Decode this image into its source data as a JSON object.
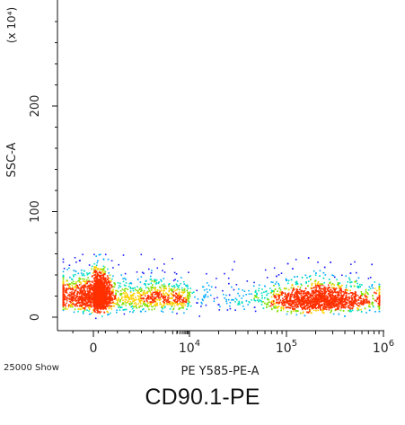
{
  "chart_data": {
    "type": "scatter",
    "title": "",
    "xlabel": "PE Y585-PE-A",
    "ylabel": "SSC-A",
    "y_multiplier": "(x 10⁴)",
    "x_scale": "biexponential",
    "y_scale": "linear",
    "ylim": [
      -5,
      290
    ],
    "xlim": [
      -0.35,
      6
    ],
    "x_ticks": [
      {
        "value": 0,
        "label": "0"
      },
      {
        "value": 4,
        "label": "10",
        "exp": "4"
      },
      {
        "value": 5,
        "label": "10",
        "exp": "5"
      },
      {
        "value": 6,
        "label": "10",
        "exp": "6"
      }
    ],
    "y_ticks": [
      {
        "value": 0,
        "label": "0"
      },
      {
        "value": 100,
        "label": "100"
      },
      {
        "value": 200,
        "label": "200"
      }
    ],
    "event_count_label": "25000 Show",
    "colormap": [
      "#1a1aff",
      "#00aaff",
      "#00e0c0",
      "#7fe000",
      "#ffd000",
      "#ff3000"
    ],
    "populations": [
      {
        "x_center": 0.12,
        "x_spread": 0.25,
        "y_center": 20,
        "y_spread": 9,
        "weight": 0.4
      },
      {
        "x_center": 2.7,
        "x_spread": 1.6,
        "y_center": 18,
        "y_spread": 8,
        "weight": 0.2
      },
      {
        "x_center": 5.35,
        "x_spread": 0.28,
        "y_center": 16,
        "y_spread": 7,
        "weight": 0.4
      }
    ],
    "grid": false,
    "legend": "none"
  },
  "caption": "CD90.1-PE"
}
